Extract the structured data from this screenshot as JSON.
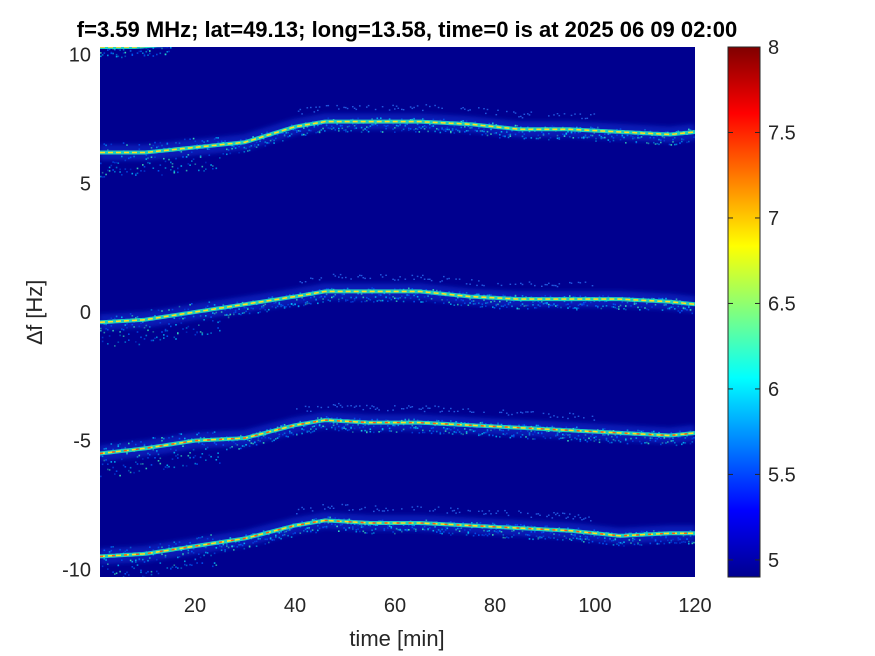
{
  "chart_data": {
    "type": "heatmap",
    "title": "f=3.59 MHz;  lat=49.13; long=13.58, time=0 is at 2025 06 09 02:00",
    "xlabel": "time [min]",
    "ylabel": "∆f [Hz]",
    "xlim": [
      1,
      120
    ],
    "ylim": [
      -10.3,
      10.3
    ],
    "x_ticks": [
      20,
      40,
      60,
      80,
      100,
      120
    ],
    "x_tick_labels": [
      "20",
      "40",
      "60",
      "80",
      "100",
      "120"
    ],
    "y_ticks": [
      -10,
      -5,
      0,
      5,
      10
    ],
    "y_tick_labels": [
      "-10",
      "-5",
      "0",
      "5",
      "10"
    ],
    "colorbar": {
      "colormap": "jet",
      "range": [
        4.9,
        8
      ],
      "ticks": [
        5,
        5.5,
        6,
        6.5,
        7,
        7.5,
        8
      ],
      "tick_labels": [
        "5",
        "5.5",
        "6",
        "6.5",
        "7",
        "7.5",
        "8"
      ]
    },
    "background_color": "#00008f",
    "series": [
      {
        "x": [
          1,
          10,
          20,
          30,
          40,
          46,
          55,
          65,
          75,
          85,
          95,
          105,
          115,
          120
        ],
        "y": [
          6.2,
          6.2,
          6.4,
          6.6,
          7.2,
          7.4,
          7.4,
          7.4,
          7.3,
          7.1,
          7.1,
          7.0,
          6.9,
          7.0
        ]
      },
      {
        "x": [
          1,
          10,
          20,
          30,
          40,
          46,
          55,
          65,
          75,
          85,
          95,
          105,
          115,
          120
        ],
        "y": [
          -0.4,
          -0.3,
          0.0,
          0.3,
          0.6,
          0.8,
          0.8,
          0.8,
          0.6,
          0.5,
          0.5,
          0.5,
          0.4,
          0.3
        ]
      },
      {
        "x": [
          1,
          10,
          20,
          30,
          40,
          46,
          55,
          65,
          75,
          85,
          95,
          105,
          115,
          120
        ],
        "y": [
          -5.5,
          -5.3,
          -5.0,
          -4.9,
          -4.4,
          -4.2,
          -4.3,
          -4.3,
          -4.4,
          -4.5,
          -4.6,
          -4.7,
          -4.8,
          -4.7
        ]
      },
      {
        "x": [
          1,
          10,
          20,
          30,
          40,
          46,
          55,
          65,
          75,
          85,
          95,
          105,
          115,
          120
        ],
        "y": [
          -9.5,
          -9.4,
          -9.1,
          -8.8,
          -8.3,
          -8.1,
          -8.2,
          -8.2,
          -8.3,
          -8.4,
          -8.5,
          -8.7,
          -8.6,
          -8.6
        ]
      },
      {
        "x": [
          1,
          8,
          15
        ],
        "y": [
          10.3,
          10.3,
          10.4
        ]
      }
    ]
  }
}
